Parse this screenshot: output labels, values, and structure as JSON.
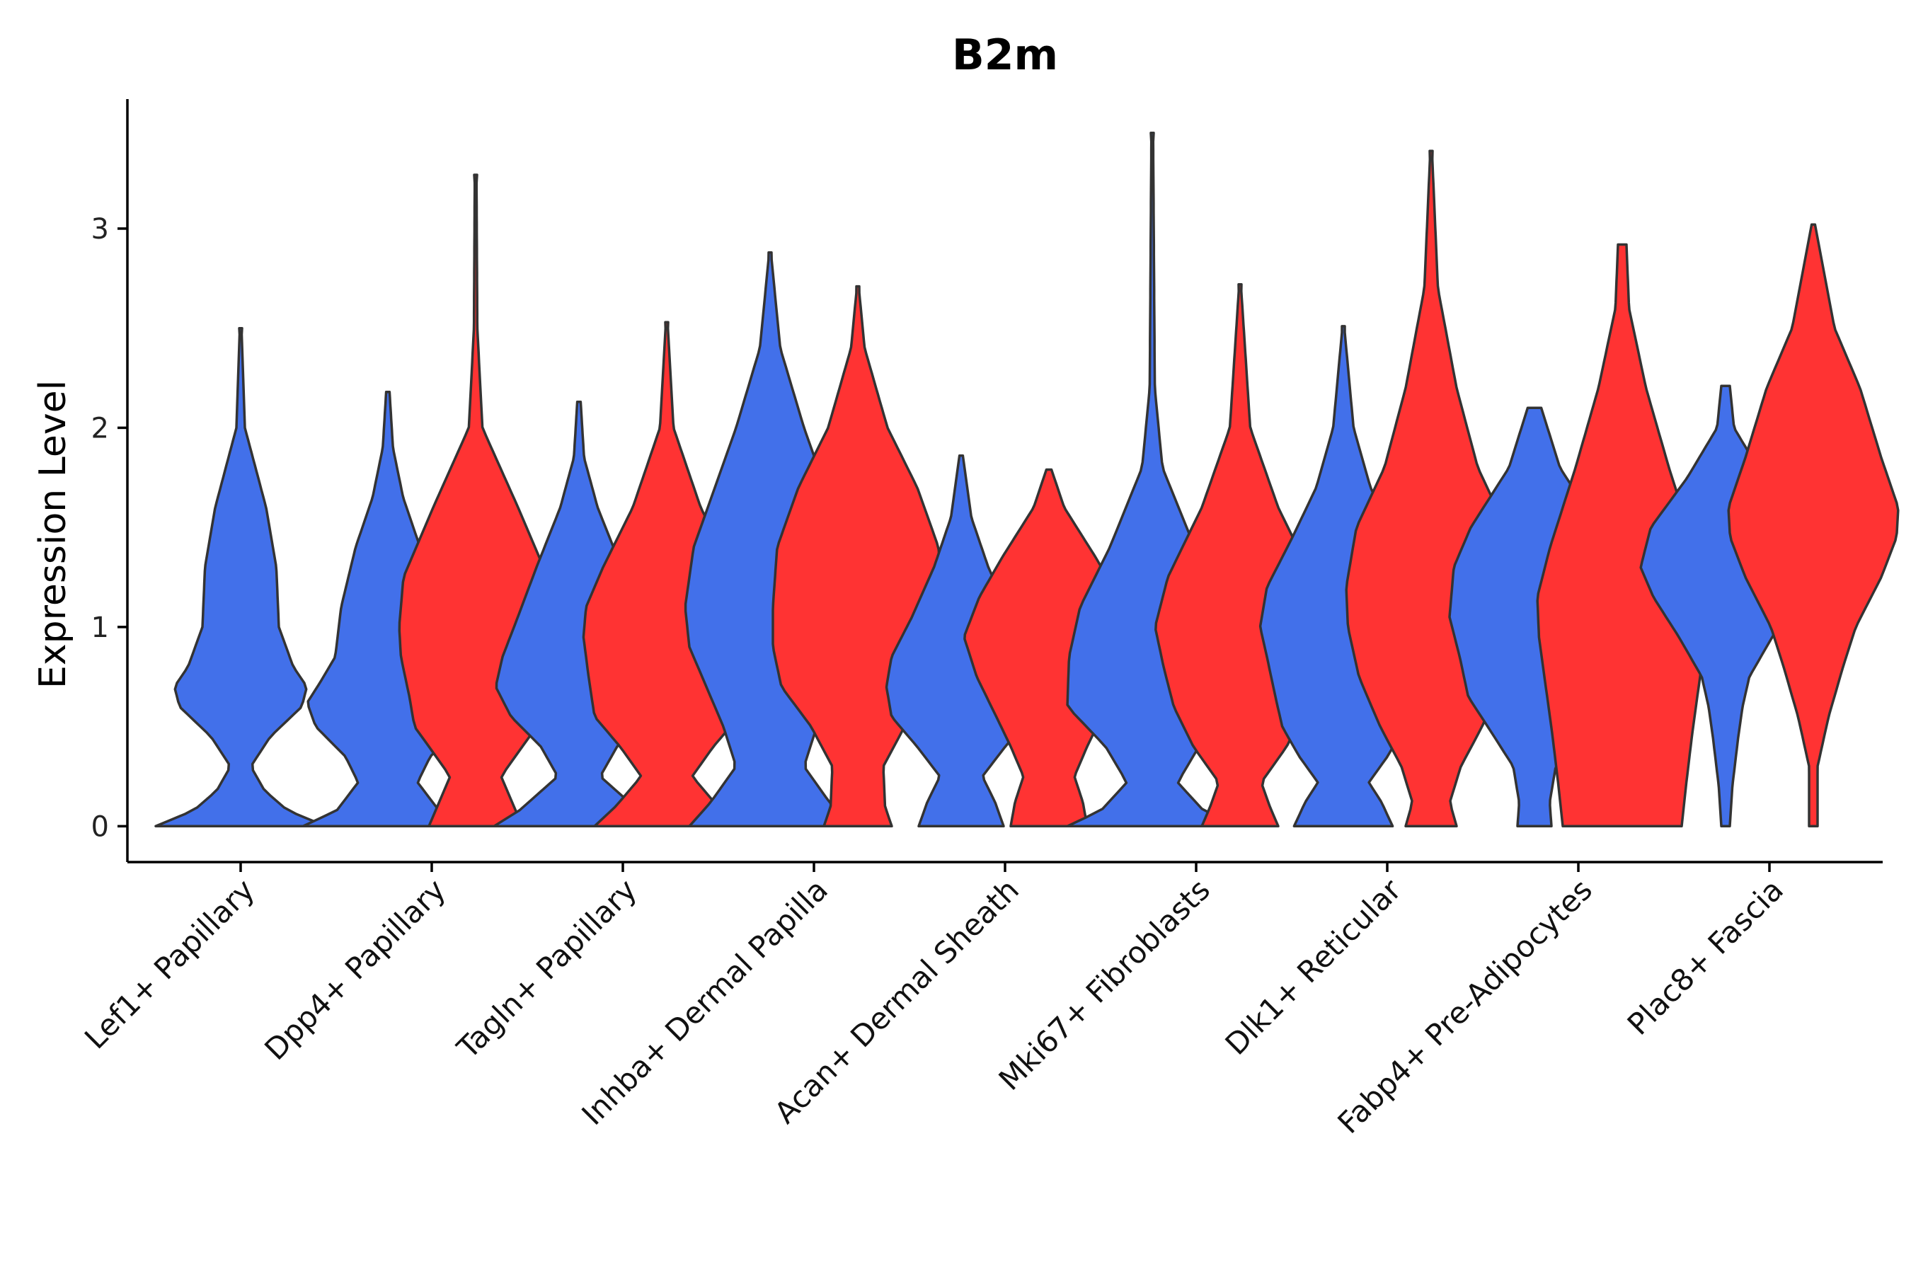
{
  "chart_data": {
    "type": "violin",
    "title": "B2m",
    "ylabel": "Expression Level",
    "xlabel": "",
    "ylim": [
      -0.18,
      3.65
    ],
    "yticks": [
      0,
      1,
      2,
      3
    ],
    "colors": {
      "group1": "#4270EA",
      "group2": "#FF3333",
      "outline": "#333333"
    },
    "groups": [
      {
        "category": "Lef1+ Papillary",
        "violins": [
          {
            "series": "group1",
            "max": 2.5,
            "profile": [
              [
                0,
                1.0
              ],
              [
                0.08,
                0.55
              ],
              [
                0.18,
                0.28
              ],
              [
                0.3,
                0.12
              ],
              [
                0.45,
                0.35
              ],
              [
                0.6,
                0.72
              ],
              [
                0.7,
                0.78
              ],
              [
                0.8,
                0.62
              ],
              [
                1.0,
                0.45
              ],
              [
                1.3,
                0.42
              ],
              [
                1.6,
                0.3
              ],
              [
                2.0,
                0.05
              ],
              [
                2.5,
                0.01
              ]
            ]
          }
        ]
      },
      {
        "category": "Dpp4+ Papillary",
        "violins": [
          {
            "series": "group1",
            "max": 2.18,
            "profile": [
              [
                0,
                1.0
              ],
              [
                0.08,
                0.6
              ],
              [
                0.22,
                0.35
              ],
              [
                0.35,
                0.5
              ],
              [
                0.5,
                0.85
              ],
              [
                0.62,
                0.95
              ],
              [
                0.72,
                0.8
              ],
              [
                0.85,
                0.62
              ],
              [
                1.1,
                0.55
              ],
              [
                1.4,
                0.38
              ],
              [
                1.65,
                0.18
              ],
              [
                1.9,
                0.06
              ],
              [
                2.18,
                0.02
              ]
            ]
          },
          {
            "series": "group2",
            "max": 3.27,
            "profile": [
              [
                0,
                0.55
              ],
              [
                0.1,
                0.45
              ],
              [
                0.25,
                0.3
              ],
              [
                0.4,
                0.55
              ],
              [
                0.5,
                0.72
              ],
              [
                0.65,
                0.78
              ],
              [
                0.85,
                0.88
              ],
              [
                1.0,
                0.9
              ],
              [
                1.25,
                0.85
              ],
              [
                1.6,
                0.5
              ],
              [
                2.0,
                0.08
              ],
              [
                2.5,
                0.02
              ],
              [
                3.27,
                0.01
              ]
            ]
          }
        ]
      },
      {
        "category": "Tagln+ Papillary",
        "violins": [
          {
            "series": "group1",
            "max": 2.13,
            "profile": [
              [
                0,
                1.0
              ],
              [
                0.08,
                0.7
              ],
              [
                0.25,
                0.25
              ],
              [
                0.4,
                0.45
              ],
              [
                0.55,
                0.8
              ],
              [
                0.7,
                0.98
              ],
              [
                0.85,
                0.9
              ],
              [
                1.05,
                0.72
              ],
              [
                1.3,
                0.5
              ],
              [
                1.6,
                0.22
              ],
              [
                1.85,
                0.06
              ],
              [
                2.13,
                0.02
              ]
            ]
          },
          {
            "series": "group2",
            "max": 2.53,
            "profile": [
              [
                0,
                0.85
              ],
              [
                0.1,
                0.6
              ],
              [
                0.25,
                0.3
              ],
              [
                0.4,
                0.55
              ],
              [
                0.55,
                0.85
              ],
              [
                0.75,
                0.92
              ],
              [
                0.95,
                0.98
              ],
              [
                1.1,
                0.95
              ],
              [
                1.3,
                0.75
              ],
              [
                1.6,
                0.4
              ],
              [
                2.0,
                0.08
              ],
              [
                2.53,
                0.01
              ]
            ]
          }
        ]
      },
      {
        "category": "Inhba+ Dermal Papilla",
        "violins": [
          {
            "series": "group1",
            "max": 2.88,
            "profile": [
              [
                0,
                0.95
              ],
              [
                0.12,
                0.7
              ],
              [
                0.3,
                0.4
              ],
              [
                0.5,
                0.55
              ],
              [
                0.7,
                0.75
              ],
              [
                0.9,
                0.95
              ],
              [
                1.1,
                1.0
              ],
              [
                1.4,
                0.9
              ],
              [
                1.7,
                0.65
              ],
              [
                2.0,
                0.4
              ],
              [
                2.4,
                0.12
              ],
              [
                2.88,
                0.01
              ]
            ]
          },
          {
            "series": "group2",
            "max": 2.71,
            "profile": [
              [
                0,
                0.4
              ],
              [
                0.1,
                0.32
              ],
              [
                0.3,
                0.3
              ],
              [
                0.5,
                0.55
              ],
              [
                0.7,
                0.9
              ],
              [
                0.9,
                1.0
              ],
              [
                1.1,
                1.0
              ],
              [
                1.4,
                0.95
              ],
              [
                1.7,
                0.7
              ],
              [
                2.0,
                0.35
              ],
              [
                2.4,
                0.08
              ],
              [
                2.71,
                0.01
              ]
            ]
          }
        ]
      },
      {
        "category": "Acan+ Dermal Sheath",
        "violins": [
          {
            "series": "group1",
            "max": 1.86,
            "profile": [
              [
                0,
                0.5
              ],
              [
                0.12,
                0.4
              ],
              [
                0.25,
                0.25
              ],
              [
                0.4,
                0.52
              ],
              [
                0.55,
                0.82
              ],
              [
                0.7,
                0.88
              ],
              [
                0.85,
                0.82
              ],
              [
                1.05,
                0.58
              ],
              [
                1.3,
                0.32
              ],
              [
                1.55,
                0.12
              ],
              [
                1.86,
                0.02
              ]
            ]
          },
          {
            "series": "group2",
            "max": 1.79,
            "profile": [
              [
                0,
                0.45
              ],
              [
                0.12,
                0.4
              ],
              [
                0.25,
                0.3
              ],
              [
                0.4,
                0.45
              ],
              [
                0.55,
                0.62
              ],
              [
                0.75,
                0.85
              ],
              [
                0.95,
                1.0
              ],
              [
                1.15,
                0.82
              ],
              [
                1.35,
                0.55
              ],
              [
                1.6,
                0.18
              ],
              [
                1.79,
                0.03
              ]
            ]
          }
        ]
      },
      {
        "category": "Mki67+ Fibroblasts",
        "violins": [
          {
            "series": "group1",
            "max": 3.48,
            "profile": [
              [
                0,
                1.0
              ],
              [
                0.08,
                0.6
              ],
              [
                0.22,
                0.3
              ],
              [
                0.4,
                0.55
              ],
              [
                0.6,
                1.0
              ],
              [
                0.85,
                0.98
              ],
              [
                1.1,
                0.85
              ],
              [
                1.4,
                0.5
              ],
              [
                1.8,
                0.12
              ],
              [
                2.2,
                0.03
              ],
              [
                3.48,
                0.01
              ]
            ]
          },
          {
            "series": "group2",
            "max": 2.72,
            "profile": [
              [
                0,
                0.45
              ],
              [
                0.1,
                0.35
              ],
              [
                0.22,
                0.25
              ],
              [
                0.4,
                0.55
              ],
              [
                0.6,
                0.78
              ],
              [
                0.8,
                0.9
              ],
              [
                1.0,
                1.0
              ],
              [
                1.25,
                0.85
              ],
              [
                1.6,
                0.45
              ],
              [
                2.0,
                0.12
              ],
              [
                2.72,
                0.01
              ]
            ]
          }
        ]
      },
      {
        "category": "Dlk1+ Reticular",
        "violins": [
          {
            "series": "group1",
            "max": 2.51,
            "profile": [
              [
                0,
                0.58
              ],
              [
                0.12,
                0.45
              ],
              [
                0.22,
                0.3
              ],
              [
                0.35,
                0.52
              ],
              [
                0.5,
                0.72
              ],
              [
                0.65,
                0.8
              ],
              [
                0.85,
                0.9
              ],
              [
                1.0,
                0.98
              ],
              [
                1.2,
                0.9
              ],
              [
                1.45,
                0.6
              ],
              [
                1.7,
                0.32
              ],
              [
                2.0,
                0.12
              ],
              [
                2.51,
                0.01
              ]
            ]
          },
          {
            "series": "group2",
            "max": 3.39,
            "profile": [
              [
                0,
                0.3
              ],
              [
                0.12,
                0.22
              ],
              [
                0.3,
                0.35
              ],
              [
                0.5,
                0.6
              ],
              [
                0.75,
                0.85
              ],
              [
                1.0,
                0.98
              ],
              [
                1.2,
                1.0
              ],
              [
                1.5,
                0.88
              ],
              [
                1.8,
                0.55
              ],
              [
                2.2,
                0.3
              ],
              [
                2.7,
                0.08
              ],
              [
                3.39,
                0.01
              ]
            ]
          }
        ]
      },
      {
        "category": "Fabp4+ Pre-Adipocytes",
        "violins": [
          {
            "series": "group1",
            "max": 2.1,
            "profile": [
              [
                0,
                0.2
              ],
              [
                0.12,
                0.18
              ],
              [
                0.3,
                0.25
              ],
              [
                0.5,
                0.55
              ],
              [
                0.65,
                0.78
              ],
              [
                0.85,
                0.88
              ],
              [
                1.05,
                1.0
              ],
              [
                1.3,
                0.95
              ],
              [
                1.5,
                0.75
              ],
              [
                1.8,
                0.3
              ],
              [
                2.1,
                0.08
              ]
            ]
          },
          {
            "series": "group2",
            "max": 2.92,
            "profile": [
              [
                0,
                0.7
              ],
              [
                0.2,
                0.75
              ],
              [
                0.45,
                0.82
              ],
              [
                0.7,
                0.9
              ],
              [
                0.95,
                0.98
              ],
              [
                1.15,
                1.0
              ],
              [
                1.4,
                0.85
              ],
              [
                1.8,
                0.55
              ],
              [
                2.2,
                0.28
              ],
              [
                2.6,
                0.08
              ],
              [
                2.92,
                0.05
              ]
            ]
          }
        ]
      },
      {
        "category": "Plac8+ Fascia",
        "violins": [
          {
            "series": "group1",
            "max": 2.21,
            "profile": [
              [
                0,
                0.05
              ],
              [
                0.2,
                0.08
              ],
              [
                0.45,
                0.15
              ],
              [
                0.6,
                0.2
              ],
              [
                0.75,
                0.28
              ],
              [
                0.95,
                0.55
              ],
              [
                1.15,
                0.85
              ],
              [
                1.3,
                1.0
              ],
              [
                1.5,
                0.88
              ],
              [
                1.75,
                0.45
              ],
              [
                2.0,
                0.1
              ],
              [
                2.21,
                0.05
              ]
            ]
          },
          {
            "series": "group2",
            "max": 3.02,
            "profile": [
              [
                0,
                0.05
              ],
              [
                0.3,
                0.05
              ],
              [
                0.55,
                0.18
              ],
              [
                0.8,
                0.35
              ],
              [
                1.0,
                0.5
              ],
              [
                1.25,
                0.8
              ],
              [
                1.45,
                0.98
              ],
              [
                1.6,
                1.0
              ],
              [
                1.85,
                0.8
              ],
              [
                2.2,
                0.55
              ],
              [
                2.5,
                0.25
              ],
              [
                3.02,
                0.02
              ]
            ]
          }
        ]
      }
    ]
  }
}
